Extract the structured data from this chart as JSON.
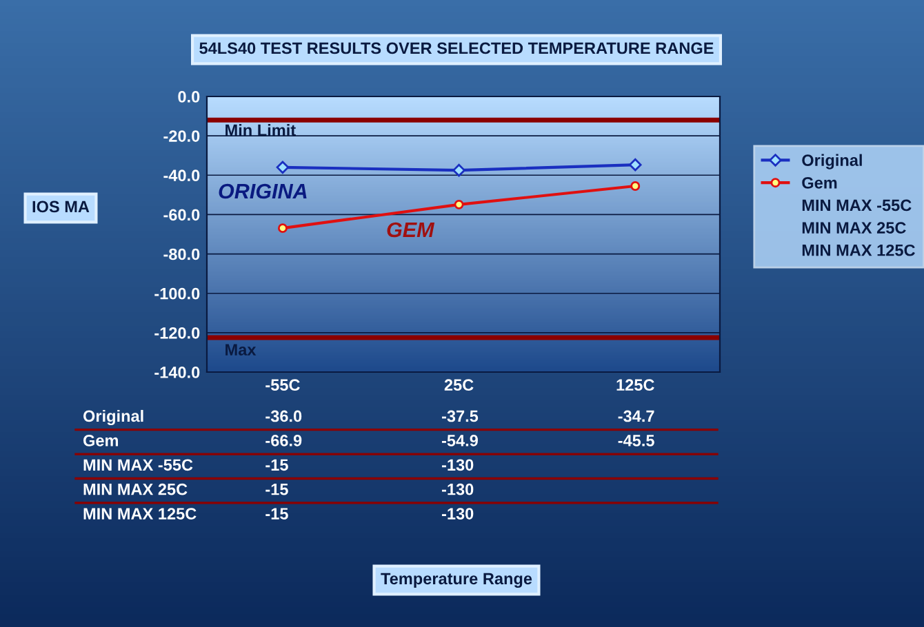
{
  "chart_data": {
    "type": "line",
    "title": "54LS40 TEST RESULTS OVER SELECTED TEMPERATURE RANGE",
    "ylabel": "IOS MA",
    "categories": [
      "-55C",
      "25C",
      "125C"
    ],
    "series": [
      {
        "name": "Original",
        "color": "#1a2fc0",
        "marker": "diamond",
        "line_style": "solid",
        "values": [
          -36.0,
          -37.5,
          -34.7
        ],
        "value_labels": [
          "-36.0",
          "-37.5",
          "-34.7"
        ]
      },
      {
        "name": "Gem",
        "color": "#e01010",
        "marker": "circle",
        "line_style": "solid",
        "values": [
          -66.9,
          -54.9,
          -45.5
        ],
        "value_labels": [
          "-66.9",
          "-54.9",
          "-45.5"
        ]
      }
    ],
    "ref_lines": [
      {
        "axis": "y",
        "value": -12,
        "label": "Min Limit",
        "color": "#8b0000"
      },
      {
        "axis": "y",
        "value": -122.5,
        "label": "Max",
        "color": "#8b0000"
      }
    ],
    "annotations": [
      "ORIGINA",
      "GEM",
      "Temperature Range",
      "MIN MAX -55C",
      "-15",
      "-130",
      "MIN MAX 25C",
      "-15",
      "-130",
      "MIN MAX 125C",
      "-15",
      "-130"
    ],
    "ylim": [
      -140,
      0
    ],
    "yticks": [
      {
        "value": -140,
        "label": "-140.0"
      },
      {
        "value": -120,
        "label": "-120.0"
      },
      {
        "value": -100,
        "label": "-100.0"
      },
      {
        "value": -80,
        "label": "-80.0"
      },
      {
        "value": -60,
        "label": "-60.0"
      },
      {
        "value": -40,
        "label": "-40.0"
      },
      {
        "value": -20,
        "label": "-20.0"
      },
      {
        "value": 0,
        "label": "0.0"
      }
    ],
    "grid": "y",
    "legend": "right"
  }
}
